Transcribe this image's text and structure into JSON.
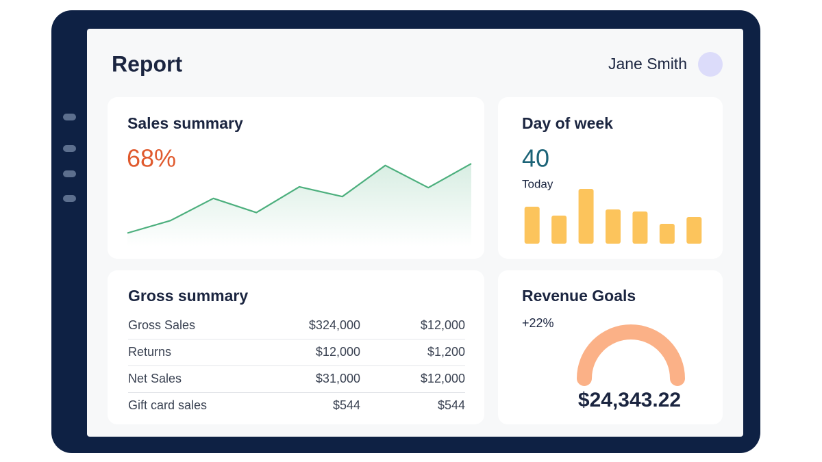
{
  "header": {
    "title": "Report",
    "user": "Jane Smith"
  },
  "sales_summary": {
    "title": "Sales summary",
    "value": "68%",
    "chart": {
      "type": "line",
      "values": [
        15,
        29,
        54,
        38,
        67,
        56,
        91,
        66,
        93
      ],
      "ylim": [
        0,
        100
      ],
      "color": "#4caf7d"
    }
  },
  "day_of_week": {
    "title": "Day of week",
    "value": "40",
    "caption": "Today",
    "chart": {
      "type": "bar",
      "values": [
        54,
        41,
        80,
        50,
        47,
        29,
        39
      ],
      "ylim": [
        0,
        100
      ],
      "color": "#fcc45c"
    }
  },
  "gross_summary": {
    "title": "Gross summary",
    "rows": [
      [
        "Gross Sales",
        "$324,000",
        "$12,000"
      ],
      [
        "Returns",
        "$12,000",
        "$1,200"
      ],
      [
        "Net Sales",
        "$31,000",
        "$12,000"
      ],
      [
        "Gift card sales",
        "$544",
        "$544"
      ]
    ]
  },
  "revenue_goals": {
    "title": "Revenue Goals",
    "change": "+22%",
    "amount": "$24,343.22"
  }
}
